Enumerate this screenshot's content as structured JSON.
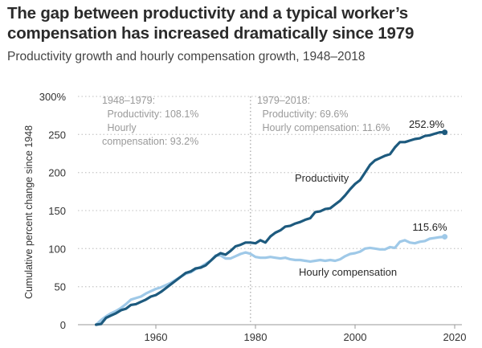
{
  "title": "The gap between productivity and a typical worker’s compensation has increased dramatically since 1979",
  "subtitle": "Productivity growth and hourly compensation growth, 1948–2018",
  "colors": {
    "productivity": "#1d5a7e",
    "compensation": "#9fc9e8",
    "grid": "#cccccc",
    "annotation": "#9a9a9a"
  },
  "chart_data": {
    "type": "line",
    "title": "The gap between productivity and a typical worker’s compensation has increased dramatically since 1979",
    "subtitle": "Productivity growth and hourly compensation growth, 1948–2018",
    "xlabel": "",
    "ylabel": "Cumulative percent change since 1948",
    "xlim": [
      1944,
      2021
    ],
    "ylim": [
      0,
      300
    ],
    "xticks": [
      1960,
      1980,
      2000,
      2020
    ],
    "xtick_labels": [
      "1960",
      "1980",
      "2000",
      "2020"
    ],
    "yticks": [
      0,
      50,
      100,
      150,
      200,
      250,
      300
    ],
    "ytick_labels": [
      "0",
      "50",
      "100",
      "150",
      "200",
      "250",
      "300%"
    ],
    "grid": "horizontal-dotted",
    "x": [
      1948,
      1949,
      1950,
      1951,
      1952,
      1953,
      1954,
      1955,
      1956,
      1957,
      1958,
      1959,
      1960,
      1961,
      1962,
      1963,
      1964,
      1965,
      1966,
      1967,
      1968,
      1969,
      1970,
      1971,
      1972,
      1973,
      1974,
      1975,
      1976,
      1977,
      1978,
      1979,
      1980,
      1981,
      1982,
      1983,
      1984,
      1985,
      1986,
      1987,
      1988,
      1989,
      1990,
      1991,
      1992,
      1993,
      1994,
      1995,
      1996,
      1997,
      1998,
      1999,
      2000,
      2001,
      2002,
      2003,
      2004,
      2005,
      2006,
      2007,
      2008,
      2009,
      2010,
      2011,
      2012,
      2013,
      2014,
      2015,
      2016,
      2017,
      2018
    ],
    "series": [
      {
        "name": "Productivity",
        "values": [
          0,
          1,
          9,
          12,
          15,
          19,
          21,
          26,
          27,
          30,
          33,
          37,
          39,
          43,
          48,
          53,
          58,
          63,
          68,
          70,
          74,
          75,
          78,
          84,
          90,
          94,
          92,
          97,
          103,
          105,
          108,
          108,
          107,
          111,
          108,
          116,
          121,
          124,
          129,
          130,
          133,
          135,
          138,
          140,
          148,
          149,
          152,
          153,
          158,
          163,
          170,
          178,
          185,
          190,
          200,
          210,
          216,
          219,
          222,
          224,
          233,
          240,
          240,
          242,
          244,
          245,
          248,
          249,
          251,
          252.9,
          252.9
        ],
        "end_label": "252.9%"
      },
      {
        "name": "Hourly compensation",
        "values": [
          0,
          6,
          11,
          15,
          18,
          22,
          27,
          33,
          35,
          37,
          41,
          44,
          47,
          49,
          52,
          55,
          59,
          63,
          67,
          69,
          73,
          76,
          80,
          84,
          91,
          91,
          87,
          87,
          90,
          93,
          95,
          93.2,
          89,
          88,
          88,
          89,
          88,
          87,
          88,
          86,
          85,
          85,
          84,
          83,
          84,
          85,
          84,
          85,
          84,
          86,
          90,
          93,
          94,
          96,
          100,
          101,
          100,
          99,
          99,
          102,
          101,
          109,
          111,
          108,
          107,
          109,
          110,
          113,
          114,
          115,
          115.6
        ],
        "end_label": "115.6%"
      }
    ],
    "vline": {
      "x": 1979,
      "style": "dotted"
    },
    "annotations": {
      "period1": [
        "1948–1979:",
        " Productivity: 108.1%",
        " Hourly",
        "compensation: 93.2%"
      ],
      "period2": [
        "1979–2018:",
        " Productivity: 69.6%",
        " Hourly compensation: 11.6%"
      ],
      "productivity_label": "Productivity",
      "compensation_label": "Hourly compensation"
    },
    "legend": "inline-labels"
  }
}
